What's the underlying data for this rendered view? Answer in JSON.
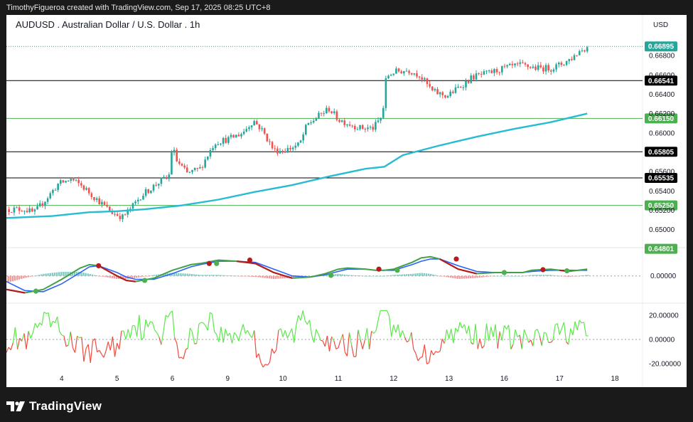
{
  "caption": "TimothyFigueroa created with TradingView.com, Sep 17, 2025 08:25 UTC+8",
  "brand": "TradingView",
  "chart_data": {
    "type": "line",
    "title": "AUDUSD . Australian Dollar / U.S. Dollar . 1h",
    "currency": "USD",
    "price_axis": {
      "range": [
        0.6485,
        0.6697
      ],
      "ticks": [
        "0.66800",
        "0.66600",
        "0.66400",
        "0.66200",
        "0.66000",
        "0.65600",
        "0.65400",
        "0.65200",
        "0.65000"
      ],
      "tick_values": [
        0.668,
        0.666,
        0.664,
        0.662,
        0.66,
        0.656,
        0.654,
        0.652,
        0.65
      ]
    },
    "time_axis": {
      "labels": [
        "4",
        "5",
        "6",
        "9",
        "10",
        "11",
        "12",
        "13",
        "16",
        "17",
        "18"
      ],
      "label_positions": [
        1.5,
        4.5,
        7.5,
        10.5,
        13.5,
        16.5,
        19.5,
        22.5,
        25.5,
        28.5,
        31.5
      ],
      "range": [
        -1.5,
        33.0
      ]
    },
    "horizontal_levels": [
      {
        "value": 0.66541,
        "label": "0.66541",
        "color": "#000000"
      },
      {
        "value": 0.6615,
        "label": "0.66150",
        "color": "#4caf50"
      },
      {
        "value": 0.65805,
        "label": "0.65805",
        "color": "#000000"
      },
      {
        "value": 0.65535,
        "label": "0.65535",
        "color": "#000000"
      },
      {
        "value": 0.6525,
        "label": "0.65250",
        "color": "#4caf50"
      },
      {
        "value": 0.64801,
        "label": "0.64801",
        "color": "#4caf50",
        "label_only": true
      }
    ],
    "current_price": {
      "value": 0.66895,
      "label": "0.66895",
      "color": "#26a69a"
    },
    "price_path": {
      "x": [
        -1.5,
        -0.5,
        0.0,
        0.8,
        1.3,
        2.0,
        2.6,
        3.6,
        4.2,
        4.8,
        5.3,
        5.8,
        6.5,
        6.9,
        7.3,
        7.5,
        7.7,
        8.3,
        9.0,
        9.8,
        10.6,
        11.3,
        11.9,
        12.4,
        13.0,
        13.6,
        14.4,
        14.8,
        15.6,
        16.0,
        16.5,
        17.0,
        17.7,
        18.4,
        18.9,
        19.1,
        19.5,
        20.3,
        20.9,
        21.6,
        22.4,
        23.1,
        23.8,
        24.7,
        25.5,
        26.4,
        27.3,
        28.1,
        28.7,
        29.2,
        29.6,
        30.1
      ],
      "y": [
        0.6521,
        0.6521,
        0.6517,
        0.6535,
        0.6547,
        0.6552,
        0.6545,
        0.6528,
        0.6518,
        0.6513,
        0.6523,
        0.6535,
        0.6545,
        0.6551,
        0.6553,
        0.6588,
        0.6572,
        0.6558,
        0.6563,
        0.659,
        0.6594,
        0.66,
        0.6613,
        0.6602,
        0.6582,
        0.6582,
        0.6588,
        0.6608,
        0.662,
        0.6625,
        0.6614,
        0.661,
        0.6605,
        0.6605,
        0.6618,
        0.6658,
        0.6663,
        0.6665,
        0.666,
        0.6643,
        0.6638,
        0.6648,
        0.6658,
        0.6662,
        0.6667,
        0.667,
        0.6667,
        0.6667,
        0.6672,
        0.6678,
        0.6685,
        0.66895
      ]
    },
    "moving_average": {
      "x": [
        -1.5,
        1.0,
        3.0,
        4.5,
        6.0,
        8.0,
        10.0,
        12.0,
        14.0,
        16.0,
        18.0,
        19.0,
        20.0,
        22.0,
        24.0,
        26.0,
        28.0,
        30.0
      ],
      "y": [
        0.6512,
        0.6514,
        0.6518,
        0.6519,
        0.6521,
        0.6525,
        0.6531,
        0.6539,
        0.6546,
        0.6555,
        0.6563,
        0.6565,
        0.6577,
        0.6587,
        0.6596,
        0.6604,
        0.6611,
        0.662
      ]
    },
    "macd": {
      "zero_label": "0.00000",
      "range": [
        -2.1,
        2.0
      ],
      "fast": {
        "x": [
          -1.5,
          -0.5,
          0.5,
          1.5,
          2.5,
          3.0,
          3.5,
          4.5,
          5.0,
          5.5,
          6.5,
          7.5,
          8.5,
          9.0,
          10.0,
          11.0,
          12.0,
          13.0,
          14.0,
          15.0,
          15.8,
          16.5,
          17.0,
          18.0,
          18.5,
          19.0,
          19.5,
          20.5,
          21.0,
          21.5,
          22.0,
          23.0,
          24.0,
          25.0,
          26.0,
          26.5,
          27.0,
          28.0,
          28.5,
          29.0,
          30.0
        ],
        "y": [
          -1.2,
          -1.5,
          -1.2,
          -0.3,
          0.7,
          1.0,
          0.9,
          0.0,
          -0.4,
          -0.5,
          -0.2,
          0.5,
          1.0,
          1.1,
          1.4,
          1.3,
          1.1,
          0.3,
          -0.2,
          -0.1,
          0.2,
          0.6,
          0.7,
          0.6,
          0.5,
          0.5,
          0.6,
          1.2,
          1.6,
          1.7,
          1.5,
          0.6,
          0.2,
          0.3,
          0.3,
          0.3,
          0.5,
          0.6,
          0.5,
          0.4,
          0.6
        ]
      },
      "signal": {
        "x": [
          -1.5,
          -0.5,
          0.5,
          1.5,
          2.5,
          3.0,
          3.5,
          4.5,
          5.0,
          5.5,
          6.5,
          7.5,
          8.5,
          9.0,
          10.0,
          11.0,
          12.0,
          13.0,
          14.0,
          15.0,
          15.8,
          16.5,
          17.0,
          18.0,
          18.5,
          19.0,
          19.5,
          20.5,
          21.0,
          21.5,
          22.0,
          23.0,
          24.0,
          25.0,
          26.0,
          26.5,
          27.0,
          28.0,
          28.5,
          29.0,
          30.0
        ],
        "y": [
          -0.5,
          -1.3,
          -1.4,
          -0.7,
          0.3,
          0.8,
          0.9,
          0.3,
          -0.1,
          -0.3,
          -0.3,
          0.2,
          0.8,
          1.0,
          1.3,
          1.3,
          1.2,
          0.6,
          0.0,
          -0.1,
          0.1,
          0.4,
          0.6,
          0.6,
          0.5,
          0.5,
          0.5,
          1.0,
          1.3,
          1.5,
          1.5,
          0.9,
          0.4,
          0.3,
          0.3,
          0.3,
          0.4,
          0.5,
          0.5,
          0.5,
          0.5
        ]
      },
      "cross_markers": [
        {
          "x": 0.1,
          "y": -1.35,
          "color": "#4caf50"
        },
        {
          "x": 3.5,
          "y": 0.9,
          "color": "#b71c1c"
        },
        {
          "x": 6.0,
          "y": -0.4,
          "color": "#4caf50"
        },
        {
          "x": 9.5,
          "y": 1.1,
          "color": "#b71c1c"
        },
        {
          "x": 9.9,
          "y": 1.1,
          "color": "#4caf50"
        },
        {
          "x": 11.7,
          "y": 1.4,
          "color": "#b71c1c"
        },
        {
          "x": 16.1,
          "y": 0.05,
          "color": "#4caf50"
        },
        {
          "x": 18.7,
          "y": 0.6,
          "color": "#b71c1c"
        },
        {
          "x": 19.7,
          "y": 0.5,
          "color": "#4caf50"
        },
        {
          "x": 22.9,
          "y": 1.5,
          "color": "#b71c1c"
        },
        {
          "x": 25.5,
          "y": 0.3,
          "color": "#4caf50"
        },
        {
          "x": 27.6,
          "y": 0.55,
          "color": "#b71c1c"
        },
        {
          "x": 28.9,
          "y": 0.45,
          "color": "#4caf50"
        }
      ]
    },
    "oscillator": {
      "ticks": [
        "20.00000",
        "0.00000",
        "-20.00000"
      ],
      "tick_values": [
        20,
        0,
        -20
      ],
      "range": [
        -26,
        26
      ]
    }
  },
  "colors": {
    "up": "#26a69a",
    "down": "#ef5350",
    "ma": "#26bcd1",
    "macd_fast": "#43a047",
    "macd_signal": "#b71c1c",
    "macd_signal_alt": "#2962ff",
    "osc_up": "#5be84a",
    "osc_down": "#ef4b3f",
    "level_black": "#000000",
    "level_green": "#4caf50"
  }
}
